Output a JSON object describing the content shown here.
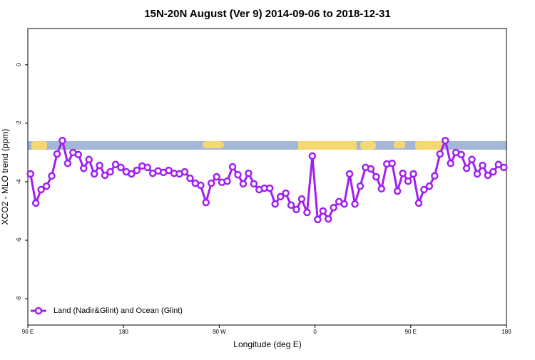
{
  "chart_data": {
    "type": "line",
    "title": "15N-20N August (Ver 9)   2014-09-06 to 2018-12-31",
    "xlabel": "Longitude (deg E)",
    "ylabel": "XCO2 - MLO trend (ppm)",
    "xlim": [
      90,
      540
    ],
    "xticks": [
      {
        "value": 90,
        "label": "90 E"
      },
      180,
      {
        "value": 270,
        "label": "90 W"
      },
      {
        "value": 360,
        "label": "0"
      },
      {
        "value": 450,
        "label": "90 E"
      },
      {
        "value": 540,
        "label": "180"
      }
    ],
    "ylim": [
      -8.9,
      1.24
    ],
    "yticks": [
      0,
      -2,
      -4,
      -6,
      -8
    ],
    "legend": "bottom-left",
    "x": [
      92.5,
      97.5,
      102.5,
      107.5,
      112.5,
      117.5,
      122.5,
      127.5,
      132.5,
      137.5,
      142.5,
      147.5,
      152.5,
      157.5,
      162.5,
      167.5,
      172.5,
      177.5,
      182.5,
      187.5,
      192.5,
      197.5,
      202.5,
      207.5,
      212.5,
      217.5,
      222.5,
      227.5,
      232.5,
      237.5,
      242.5,
      247.5,
      252.5,
      257.5,
      262.5,
      267.5,
      272.5,
      277.5,
      282.5,
      287.5,
      292.5,
      297.5,
      302.5,
      307.5,
      312.5,
      317.5,
      322.5,
      327.5,
      332.5,
      337.5,
      342.5,
      347.5,
      352.5,
      357.5,
      362.5,
      367.5,
      372.5,
      377.5,
      382.5,
      387.5,
      392.5,
      397.5,
      402.5,
      407.5,
      412.5,
      417.5,
      422.5,
      427.5,
      432.5,
      437.5,
      442.5,
      447.5,
      452.5,
      457.5,
      462.5,
      467.5,
      472.5,
      477.5,
      482.5,
      487.5,
      492.5,
      497.5,
      502.5,
      507.5,
      512.5,
      517.5,
      522.5,
      527.5,
      532.5,
      537.5
    ],
    "series": [
      {
        "name": "Land (Nadir&Glint) and Ocean (Glint)",
        "color": "#a020f0",
        "values": [
          -3.73,
          -4.73,
          -4.27,
          -4.15,
          -3.8,
          -3.05,
          -2.59,
          -3.37,
          -3.0,
          -3.07,
          -3.54,
          -3.24,
          -3.73,
          -3.44,
          -3.78,
          -3.66,
          -3.41,
          -3.51,
          -3.66,
          -3.73,
          -3.61,
          -3.46,
          -3.51,
          -3.71,
          -3.63,
          -3.68,
          -3.61,
          -3.71,
          -3.73,
          -3.66,
          -3.88,
          -4.05,
          -4.12,
          -4.71,
          -4.05,
          -3.83,
          -4.02,
          -3.98,
          -3.49,
          -3.76,
          -4.07,
          -3.71,
          -4.07,
          -4.27,
          -4.22,
          -4.22,
          -4.76,
          -4.51,
          -4.39,
          -4.8,
          -4.95,
          -4.59,
          -5.05,
          -3.12,
          -5.29,
          -5.0,
          -5.27,
          -4.88,
          -4.68,
          -4.76,
          -3.73,
          -4.76,
          -4.15,
          -3.51,
          -3.56,
          -3.83,
          -4.24,
          -3.39,
          -3.37,
          -4.32,
          -3.71,
          -3.98,
          -3.73,
          -4.73,
          -4.27,
          -4.15,
          -3.8,
          -3.05,
          -2.59,
          -3.37,
          -3.0,
          -3.07,
          -3.54,
          -3.24,
          -3.73,
          -3.44,
          -3.78,
          -3.66,
          -3.41,
          -3.51
        ]
      }
    ]
  }
}
